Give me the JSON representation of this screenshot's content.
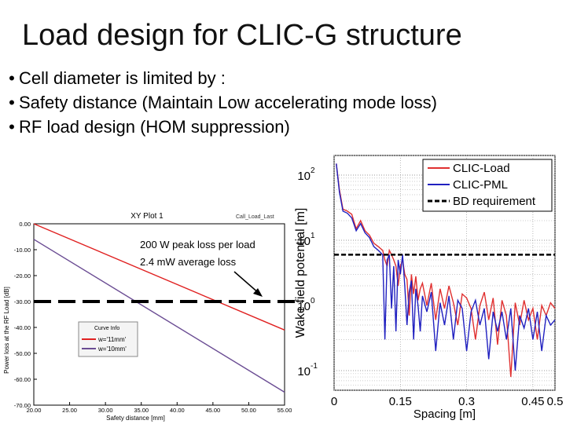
{
  "slide": {
    "title": "Load design for CLIC-G structure",
    "bullets": [
      "Cell diameter is limited by :",
      "Safety distance (Maintain Low accelerating mode loss)",
      "RF load design (HOM suppression)"
    ]
  },
  "chart_data": [
    {
      "type": "line",
      "title": "XY Plot 1",
      "header_note": "Call_Load_Last",
      "xlabel": "Safety distance [mm]",
      "ylabel": "Power loss at the RF Load [dB]",
      "xlim": [
        20,
        55
      ],
      "ylim": [
        -70,
        0
      ],
      "x_ticks": [
        "20.00",
        "25.00",
        "30.00",
        "35.00",
        "40.00",
        "45.00",
        "50.00",
        "55.00"
      ],
      "y_ticks": [
        "0.00",
        "-10.00",
        "-20.00",
        "-30.00",
        "-40.00",
        "-50.00",
        "-60.00",
        "-70.00"
      ],
      "legend_title": "Curve Info",
      "series": [
        {
          "name": "w='11mm'",
          "color": "#e02020",
          "x": [
            20,
            55
          ],
          "y": [
            0,
            -41
          ]
        },
        {
          "name": "w='10mm'",
          "color": "#6a4c93",
          "x": [
            20,
            55
          ],
          "y": [
            -6,
            -65
          ]
        }
      ],
      "threshold": {
        "y": -30,
        "color": "#000000",
        "style": "dashed"
      },
      "annotation": [
        "200 W peak loss per load",
        "2.4 mW average loss"
      ]
    },
    {
      "type": "line",
      "xlabel": "Spacing [m]",
      "ylabel": "Wake field potential [m]",
      "xlim": [
        0,
        0.5
      ],
      "ylim": [
        0.05,
        200
      ],
      "yscale": "log",
      "x_ticks": [
        "0",
        "0.15",
        "0.3",
        "0.45",
        "0.5"
      ],
      "x_tick_values": [
        0,
        0.15,
        0.3,
        0.45,
        0.5
      ],
      "y_ticks": [
        "10",
        "10",
        "10",
        "10"
      ],
      "y_tick_exponents": [
        "2",
        "1",
        "0",
        "-1"
      ],
      "y_tick_values": [
        100,
        10,
        1,
        0.1
      ],
      "legend_position": "top-right",
      "series": [
        {
          "name": "CLIC-Load",
          "color": "#e03030",
          "x": [
            0.005,
            0.012,
            0.02,
            0.03,
            0.04,
            0.05,
            0.06,
            0.07,
            0.08,
            0.09,
            0.1,
            0.11,
            0.115,
            0.12,
            0.125,
            0.13,
            0.135,
            0.14,
            0.145,
            0.15,
            0.155,
            0.16,
            0.165,
            0.17,
            0.175,
            0.18,
            0.185,
            0.19,
            0.195,
            0.2,
            0.21,
            0.22,
            0.23,
            0.24,
            0.25,
            0.26,
            0.27,
            0.28,
            0.29,
            0.3,
            0.31,
            0.32,
            0.33,
            0.34,
            0.35,
            0.36,
            0.37,
            0.38,
            0.39,
            0.4,
            0.41,
            0.42,
            0.43,
            0.44,
            0.45,
            0.46,
            0.47,
            0.48,
            0.49,
            0.5
          ],
          "y": [
            150,
            60,
            30,
            28,
            25,
            15,
            20,
            14,
            12,
            9,
            8,
            7,
            5,
            4,
            7,
            6,
            5,
            4,
            2,
            4,
            5,
            3,
            2.5,
            0.7,
            3,
            1.5,
            2.8,
            1.2,
            1.8,
            2.2,
            1,
            2.2,
            0.6,
            1.8,
            0.9,
            2,
            1.1,
            0.5,
            1.5,
            1.3,
            0.9,
            0.3,
            1,
            1.6,
            0.6,
            1.3,
            0.25,
            1.2,
            0.7,
            0.08,
            1.1,
            0.5,
            1.2,
            0.6,
            0.9,
            0.3,
            1,
            0.7,
            1.1,
            0.9
          ]
        },
        {
          "name": "CLIC-PML",
          "color": "#2020c0",
          "x": [
            0.005,
            0.012,
            0.02,
            0.03,
            0.04,
            0.05,
            0.06,
            0.07,
            0.08,
            0.09,
            0.1,
            0.11,
            0.115,
            0.12,
            0.125,
            0.13,
            0.135,
            0.14,
            0.145,
            0.15,
            0.155,
            0.16,
            0.165,
            0.17,
            0.175,
            0.18,
            0.185,
            0.19,
            0.195,
            0.2,
            0.21,
            0.22,
            0.23,
            0.24,
            0.25,
            0.26,
            0.27,
            0.28,
            0.29,
            0.3,
            0.31,
            0.32,
            0.33,
            0.34,
            0.35,
            0.36,
            0.37,
            0.38,
            0.39,
            0.4,
            0.41,
            0.42,
            0.43,
            0.44,
            0.45,
            0.46,
            0.47,
            0.48,
            0.49,
            0.5
          ],
          "y": [
            150,
            55,
            28,
            26,
            22,
            14,
            18,
            13,
            11,
            8,
            7,
            6,
            0.3,
            5,
            6,
            0.9,
            4,
            0.4,
            5,
            3,
            6,
            2,
            0.5,
            1.6,
            2.4,
            0.3,
            1.8,
            1,
            0.4,
            1.4,
            0.8,
            1.6,
            0.2,
            1.1,
            0.5,
            1.4,
            0.3,
            1.2,
            0.9,
            0.2,
            0.8,
            1.2,
            0.5,
            0.9,
            0.15,
            0.8,
            0.4,
            0.8,
            0.3,
            0.9,
            0.1,
            0.7,
            0.45,
            0.9,
            0.3,
            0.8,
            0.2,
            0.7,
            0.5,
            0.6
          ]
        },
        {
          "name": "BD requirement",
          "color": "#000000",
          "style": "dashed",
          "x": [
            0,
            0.5
          ],
          "y": [
            6,
            6
          ]
        }
      ]
    }
  ]
}
